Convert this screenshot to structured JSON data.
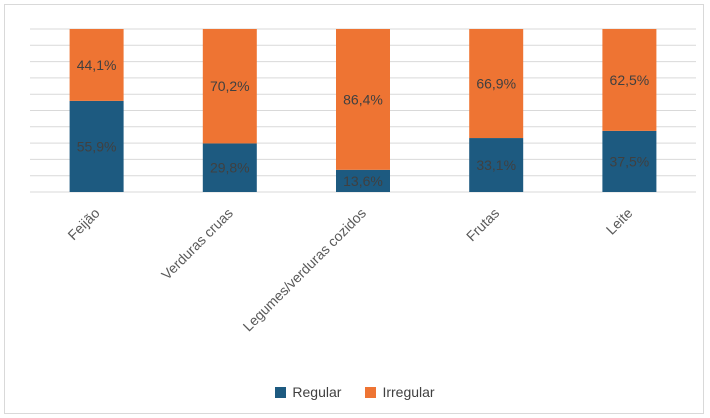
{
  "chart_data": {
    "type": "bar",
    "stacked": true,
    "categories": [
      "Feijão",
      "Verduras cruas",
      "Legumes/verduras cozidos",
      "Frutas",
      "Leite"
    ],
    "series": [
      {
        "name": "Regular",
        "values": [
          55.9,
          29.8,
          13.6,
          33.1,
          37.5
        ],
        "labels": [
          "55,9%",
          "29,8%",
          "13,6%",
          "33,1%",
          "37,5%"
        ],
        "color": "#1d5a80"
      },
      {
        "name": "Irregular",
        "values": [
          44.1,
          70.2,
          86.4,
          66.9,
          62.5
        ],
        "labels": [
          "44,1%",
          "70,2%",
          "86,4%",
          "66,9%",
          "62,5%"
        ],
        "color": "#ee7433"
      }
    ],
    "ylim": [
      0,
      100
    ],
    "grid": true,
    "legend_position": "bottom"
  }
}
